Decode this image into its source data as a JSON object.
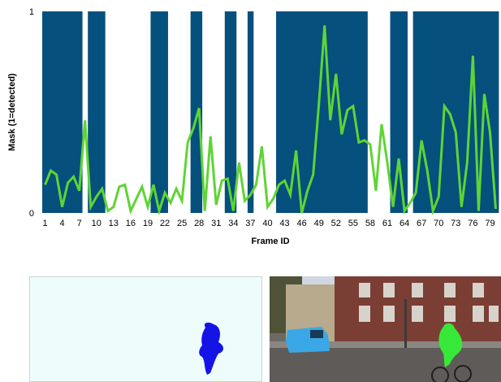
{
  "chart_data": {
    "type": "line",
    "xlabel": "Frame ID",
    "ylabel": "Mask (1=detected)",
    "xlim": [
      1,
      80
    ],
    "ylim": [
      0,
      1
    ],
    "y_ticks": [
      "0",
      "1"
    ],
    "x_tick_labels": [
      "1",
      "4",
      "7",
      "10",
      "13",
      "16",
      "19",
      "22",
      "25",
      "28",
      "31",
      "34",
      "37",
      "40",
      "43",
      "46",
      "49",
      "52",
      "55",
      "58",
      "61",
      "64",
      "67",
      "70",
      "73",
      "76",
      "79"
    ],
    "x_tick_values": [
      1,
      4,
      7,
      10,
      13,
      16,
      19,
      22,
      25,
      28,
      31,
      34,
      37,
      40,
      43,
      46,
      49,
      52,
      55,
      58,
      61,
      64,
      67,
      70,
      73,
      76,
      79
    ],
    "mask_color": "#05507d",
    "line_color": "#5fd435",
    "mask_zero_frames": [
      8,
      12,
      13,
      14,
      15,
      16,
      17,
      18,
      19,
      23,
      24,
      25,
      26,
      29,
      30,
      31,
      32,
      35,
      36,
      38,
      39,
      40,
      41,
      58,
      59,
      60,
      61,
      65
    ],
    "series": [
      {
        "x": [
          1,
          2,
          3,
          4,
          5,
          6,
          7,
          8,
          9,
          10,
          11,
          12,
          13,
          14,
          15,
          16,
          17,
          18,
          19,
          20,
          21,
          22,
          23,
          24,
          25,
          26,
          27,
          28,
          29,
          30,
          31,
          32,
          33,
          34,
          35,
          36,
          37,
          38,
          39,
          40,
          41,
          42,
          43,
          44,
          45,
          46,
          47,
          48,
          49,
          50,
          51,
          52,
          53,
          54,
          55,
          56,
          57,
          58,
          59,
          60,
          61,
          62,
          63,
          64,
          65,
          66,
          67,
          68,
          69,
          70,
          71,
          72,
          73,
          74,
          75,
          76,
          77,
          78,
          79,
          80
        ],
        "values": [
          0.14,
          0.21,
          0.19,
          0.03,
          0.15,
          0.18,
          0.11,
          0.46,
          0.03,
          0.08,
          0.12,
          0.01,
          0.03,
          0.13,
          0.14,
          0.01,
          0.07,
          0.13,
          0.03,
          0.14,
          0.01,
          0.1,
          0.05,
          0.12,
          0.06,
          0.35,
          0.42,
          0.52,
          0.01,
          0.38,
          0.04,
          0.16,
          0.17,
          0.01,
          0.25,
          0.06,
          0.09,
          0.14,
          0.33,
          0.03,
          0.07,
          0.14,
          0.16,
          0.09,
          0.31,
          0.0,
          0.11,
          0.19,
          0.54,
          0.93,
          0.46,
          0.69,
          0.39,
          0.51,
          0.53,
          0.35,
          0.36,
          0.34,
          0.11,
          0.44,
          0.25,
          0.03,
          0.27,
          0.01,
          0.05,
          0.1,
          0.36,
          0.21,
          0.01,
          0.08,
          0.53,
          0.49,
          0.4,
          0.03,
          0.25,
          0.78,
          0.01,
          0.59,
          0.4,
          0.02
        ]
      }
    ]
  },
  "bottom_panels": {
    "mask_blob_color": "#1414e6",
    "mask_background": "#eefcfc",
    "van_color": "#3aa8e6",
    "cyclist_color": "#38e838"
  }
}
